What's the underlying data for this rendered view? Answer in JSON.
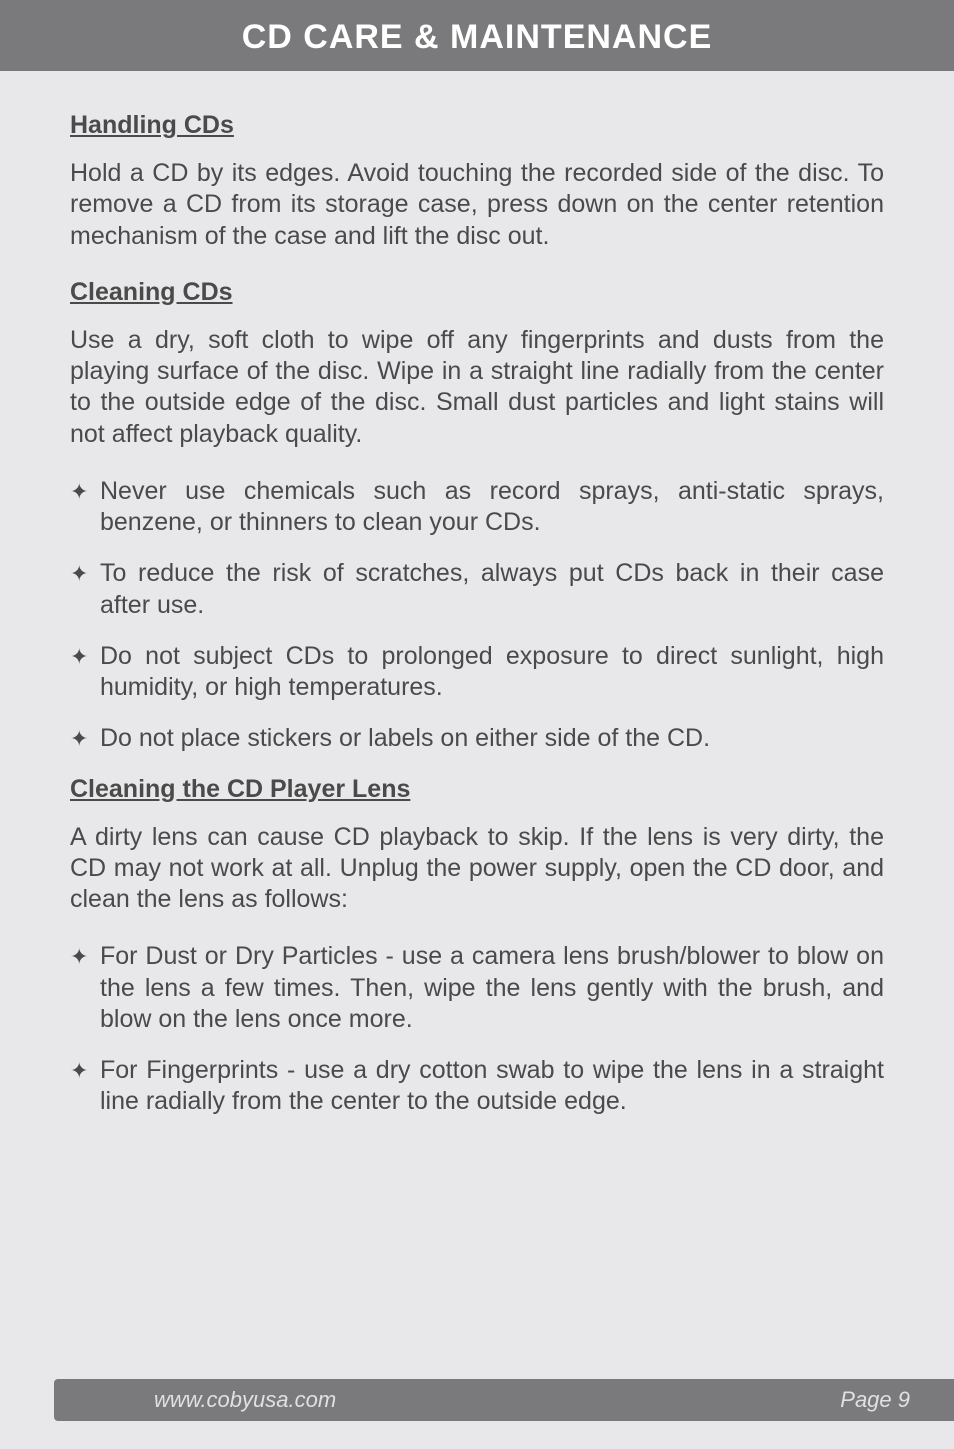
{
  "header": {
    "title": "CD CARE & MAINTENANCE"
  },
  "sections": {
    "handling": {
      "title": "Handling CDs",
      "para": "Hold a CD by its edges. Avoid touching the recorded side of the disc. To remove a CD from its storage case, press down on the center retention mechanism of the case and lift the disc out."
    },
    "cleaning": {
      "title": "Cleaning CDs",
      "para": "Use a dry, soft cloth to wipe off any fingerprints and dusts from the playing surface of the disc. Wipe in a straight line radially from the center to the outside edge of the disc. Small dust particles and light stains will not affect playback quality.",
      "bullets": [
        "Never use chemicals such as record sprays, anti-static sprays, benzene, or thinners to clean your CDs.",
        "To reduce the risk of scratches, always put CDs back in their case after use.",
        "Do not subject CDs to prolonged exposure to direct sunlight, high humidity, or high temperatures.",
        "Do not place stickers or labels on either side of the CD."
      ]
    },
    "lens": {
      "title": "Cleaning the CD Player Lens",
      "para": "A dirty lens can cause CD playback to skip. If the lens is very dirty, the CD may not work at all. Unplug the power supply, open the CD door, and clean the lens as follows:",
      "bullets": [
        "For Dust or Dry Particles - use a camera lens brush/blower to blow on the lens a few times. Then, wipe the lens gently with the brush, and blow on the lens once more.",
        "For Fingerprints - use a dry cotton swab to wipe the lens in a straight line radially from the center to the outside edge."
      ]
    }
  },
  "footer": {
    "url": "www.cobyusa.com",
    "page": "Page 9"
  },
  "bullet_glyph": "✦"
}
